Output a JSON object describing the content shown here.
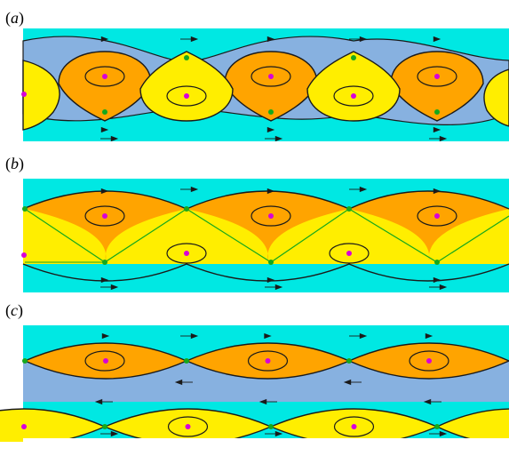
{
  "panels": [
    {
      "id": "a",
      "label": "a"
    },
    {
      "id": "b",
      "label": "b"
    },
    {
      "id": "c",
      "label": "c"
    }
  ],
  "colors": {
    "channel": "#00e8e3",
    "orange_cell": "#ffa400",
    "yellow_cell": "#ffee00",
    "blue_cell": "#87b1e0",
    "streamline": "#1a1a1a",
    "saddle_point": "#16a81c",
    "center_point": "#d800d8"
  }
}
